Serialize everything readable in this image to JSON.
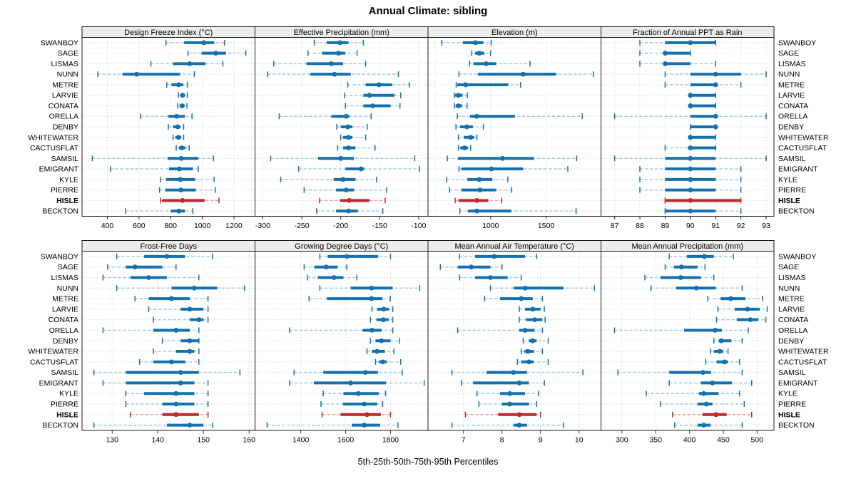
{
  "title": "Annual Climate: sibling",
  "footer": "5th-25th-50th-75th-95th Percentiles",
  "percentile_labels": [
    "5th",
    "25th",
    "50th",
    "75th",
    "95th"
  ],
  "stations": [
    "SWANBOY",
    "SAGE",
    "LISMAS",
    "NUNN",
    "METRE",
    "LARVIE",
    "CONATA",
    "ORELLA",
    "DENBY",
    "WHITEWATER",
    "CACTUSFLAT",
    "SAMSIL",
    "EMIGRANT",
    "KYLE",
    "PIERRE",
    "HISLE",
    "BECKTON"
  ],
  "highlighted_station": "HISLE",
  "colors": {
    "series": "#1471af",
    "series_light": "#a3c7e3",
    "highlight": "#c0282e",
    "highlight_light": "#e2a0a0",
    "strip_bg": "#ececec",
    "grid": "#c9c9c9",
    "border": "#1a1a1a"
  },
  "chart_data": {
    "type": "dotplot-percentiles",
    "grid_rows": 2,
    "grid_cols": 4,
    "panels": [
      {
        "title": "Design Freeze Index (°C)",
        "domain": [
          240,
          1333
        ],
        "ticks": [
          400,
          600,
          800,
          1000,
          1200
        ],
        "gridlines": [
          400,
          600,
          800,
          1000,
          1200
        ],
        "values": [
          [
            770,
            885,
            1010,
            1075,
            1140
          ],
          [
            910,
            995,
            1085,
            1150,
            1275
          ],
          [
            675,
            815,
            920,
            1020,
            1130
          ],
          [
            340,
            495,
            585,
            860,
            950
          ],
          [
            775,
            805,
            850,
            880,
            905
          ],
          [
            850,
            862,
            875,
            890,
            905
          ],
          [
            845,
            858,
            872,
            888,
            903
          ],
          [
            610,
            785,
            838,
            890,
            935
          ],
          [
            785,
            815,
            845,
            862,
            882
          ],
          [
            815,
            830,
            850,
            867,
            882
          ],
          [
            835,
            852,
            871,
            894,
            917
          ],
          [
            305,
            780,
            867,
            975,
            1070
          ],
          [
            420,
            790,
            855,
            940,
            975
          ],
          [
            735,
            771,
            861,
            954,
            1075
          ],
          [
            730,
            766,
            864,
            958,
            1082
          ],
          [
            736,
            745,
            875,
            1015,
            1105
          ],
          [
            515,
            800,
            852,
            890,
            940
          ]
        ]
      },
      {
        "title": "Effective Precipitation (mm)",
        "domain": [
          -310,
          -88
        ],
        "ticks": [
          -300,
          -250,
          -200,
          -150,
          -100
        ],
        "gridlines": [
          -300,
          -250,
          -200,
          -150,
          -100
        ],
        "values": [
          [
            -234,
            -218,
            -201,
            -190,
            -171
          ],
          [
            -242,
            -224,
            -203,
            -194,
            -179
          ],
          [
            -286,
            -244,
            -212,
            -197,
            -168
          ],
          [
            -294,
            -239,
            -208,
            -187,
            -126
          ],
          [
            -191,
            -168,
            -151,
            -134,
            -112
          ],
          [
            -195,
            -171,
            -163,
            -131,
            -123
          ],
          [
            -194,
            -171,
            -159,
            -136,
            -124
          ],
          [
            -279,
            -212,
            -193,
            -189,
            -161
          ],
          [
            -205,
            -200,
            -191,
            -185,
            -166
          ],
          [
            -200,
            -197,
            -190,
            -185,
            -168
          ],
          [
            -204,
            -197,
            -190,
            -181,
            -156
          ],
          [
            -290,
            -229,
            -200,
            -183,
            -105
          ],
          [
            -254,
            -194,
            -174,
            -170,
            -99
          ],
          [
            -277,
            -209,
            -197,
            -181,
            -154
          ],
          [
            -247,
            -206,
            -193,
            -183,
            -141
          ],
          [
            -227,
            -201,
            -189,
            -163,
            -143
          ],
          [
            -231,
            -206,
            -190,
            -178,
            -146
          ]
        ]
      },
      {
        "title": "Elevation (m)",
        "domain": [
          436,
          1994
        ],
        "ticks": [
          1000,
          1500
        ],
        "gridlines": [
          500,
          1000,
          1500
        ],
        "values": [
          [
            560,
            750,
            865,
            935,
            1005
          ],
          [
            830,
            860,
            898,
            944,
            1000
          ],
          [
            810,
            845,
            960,
            1050,
            1355
          ],
          [
            715,
            885,
            1293,
            1590,
            1925
          ],
          [
            690,
            700,
            775,
            1158,
            1270
          ],
          [
            673,
            680,
            710,
            748,
            790
          ],
          [
            673,
            685,
            710,
            745,
            788
          ],
          [
            700,
            815,
            875,
            1220,
            1825
          ],
          [
            688,
            723,
            786,
            840,
            935
          ],
          [
            710,
            758,
            820,
            852,
            876
          ],
          [
            710,
            726,
            765,
            797,
            820
          ],
          [
            610,
            705,
            1107,
            1390,
            1775
          ],
          [
            715,
            737,
            1008,
            1293,
            1695
          ],
          [
            603,
            790,
            897,
            1015,
            1155
          ],
          [
            630,
            737,
            904,
            1050,
            1190
          ],
          [
            680,
            710,
            876,
            980,
            1100
          ],
          [
            723,
            795,
            876,
            1186,
            1770
          ]
        ]
      },
      {
        "title": "Fraction of Annual PPT as Rain",
        "domain": [
          86.46,
          93.31
        ],
        "ticks": [
          87,
          88,
          89,
          90,
          91,
          92,
          93
        ],
        "gridlines": [
          87,
          88,
          89,
          90,
          91,
          92,
          93
        ],
        "values": [
          [
            88,
            89,
            90,
            91,
            91
          ],
          [
            88,
            89,
            89,
            90,
            90
          ],
          [
            88,
            89,
            89,
            90,
            91
          ],
          [
            89,
            90,
            91,
            92,
            93
          ],
          [
            89,
            90,
            91,
            91,
            92
          ],
          [
            90,
            90,
            90,
            91,
            91
          ],
          [
            90,
            90,
            90,
            91,
            91
          ],
          [
            87,
            90,
            91,
            91,
            93
          ],
          [
            90,
            90,
            91,
            91,
            91
          ],
          [
            90,
            90,
            90,
            91,
            91
          ],
          [
            89,
            90,
            90,
            91,
            91
          ],
          [
            87,
            89,
            90,
            91,
            93
          ],
          [
            88,
            89,
            90,
            91,
            92
          ],
          [
            88,
            89,
            90,
            91,
            92
          ],
          [
            88,
            89,
            90,
            91,
            92
          ],
          [
            89,
            89,
            90,
            92,
            92
          ],
          [
            89,
            89,
            90,
            91,
            92
          ]
        ]
      },
      {
        "title": "Frost-Free Days",
        "domain": [
          123.4,
          161.3
        ],
        "ticks": [
          130,
          140,
          150,
          160
        ],
        "gridlines": [
          130,
          140,
          150,
          160
        ],
        "values": [
          [
            131,
            137,
            142,
            146,
            152
          ],
          [
            129,
            133,
            135,
            141,
            144
          ],
          [
            128,
            134,
            138,
            142,
            149
          ],
          [
            131,
            143,
            148,
            153,
            159
          ],
          [
            135,
            138,
            143,
            147,
            151
          ],
          [
            138,
            145,
            147,
            150,
            151
          ],
          [
            139,
            147,
            149,
            150,
            151
          ],
          [
            128,
            139,
            144,
            147,
            149
          ],
          [
            141,
            145,
            147,
            149,
            149
          ],
          [
            139,
            144,
            147,
            148,
            149
          ],
          [
            136,
            139,
            143,
            146,
            149
          ],
          [
            126,
            133,
            145,
            149,
            158
          ],
          [
            128,
            133,
            145,
            148,
            151
          ],
          [
            133,
            137,
            144,
            148,
            151
          ],
          [
            133,
            141,
            144,
            148,
            151
          ],
          [
            134,
            141,
            144,
            149,
            151
          ],
          [
            126,
            142,
            147,
            150,
            152
          ]
        ]
      },
      {
        "title": "Growing Degree Days (°C)",
        "domain": [
          1196,
          1967
        ],
        "ticks": [
          1400,
          1600,
          1800
        ],
        "gridlines": [
          1200,
          1400,
          1600,
          1800
        ],
        "values": [
          [
            1485,
            1520,
            1605,
            1745,
            1800
          ],
          [
            1415,
            1460,
            1513,
            1565,
            1605
          ],
          [
            1430,
            1476,
            1548,
            1590,
            1650
          ],
          [
            1485,
            1622,
            1715,
            1810,
            1930
          ],
          [
            1437,
            1516,
            1715,
            1764,
            1799
          ],
          [
            1717,
            1740,
            1770,
            1793,
            1810
          ],
          [
            1710,
            1737,
            1768,
            1792,
            1810
          ],
          [
            1350,
            1675,
            1717,
            1760,
            1810
          ],
          [
            1710,
            1733,
            1760,
            1800,
            1840
          ],
          [
            1695,
            1717,
            1740,
            1775,
            1815
          ],
          [
            1733,
            1748,
            1766,
            1783,
            1845
          ],
          [
            1370,
            1500,
            1688,
            1744,
            1852
          ],
          [
            1350,
            1458,
            1622,
            1780,
            1950
          ],
          [
            1500,
            1590,
            1657,
            1747,
            1778
          ],
          [
            1490,
            1588,
            1683,
            1740,
            1765
          ],
          [
            1495,
            1577,
            1695,
            1757,
            1800
          ],
          [
            1250,
            1627,
            1683,
            1754,
            1833
          ]
        ]
      },
      {
        "title": "Mean Annual Air Temperature (°C)",
        "domain": [
          6.08,
          10.57
        ],
        "ticks": [
          7,
          8,
          9,
          10
        ],
        "gridlines": [
          7,
          8,
          9,
          10
        ],
        "values": [
          [
            6.9,
            7.3,
            7.8,
            8.6,
            8.9
          ],
          [
            6.4,
            6.85,
            7.2,
            7.7,
            8.0
          ],
          [
            6.9,
            7.3,
            7.7,
            8.15,
            8.5
          ],
          [
            7.7,
            8.3,
            8.6,
            9.6,
            10.4
          ],
          [
            7.55,
            7.95,
            8.5,
            8.8,
            9.05
          ],
          [
            8.45,
            8.6,
            8.8,
            9.0,
            9.1
          ],
          [
            8.45,
            8.62,
            8.85,
            9.05,
            9.12
          ],
          [
            6.85,
            8.45,
            8.6,
            8.85,
            9.05
          ],
          [
            8.55,
            8.7,
            8.8,
            8.9,
            9.2
          ],
          [
            8.5,
            8.58,
            8.67,
            8.83,
            9.05
          ],
          [
            8.4,
            8.5,
            8.7,
            8.82,
            9.2
          ],
          [
            6.7,
            7.6,
            8.3,
            8.65,
            10.1
          ],
          [
            6.95,
            7.25,
            8.45,
            8.7,
            9.1
          ],
          [
            7.35,
            7.95,
            8.2,
            8.6,
            8.95
          ],
          [
            7.4,
            8.0,
            8.2,
            8.7,
            8.9
          ],
          [
            7.05,
            7.9,
            8.45,
            8.9,
            9.0
          ],
          [
            6.7,
            8.3,
            8.45,
            8.65,
            9.6
          ]
        ]
      },
      {
        "title": "Mean Annual Precipitation (mm)",
        "domain": [
          269,
          525
        ],
        "ticks": [
          300,
          350,
          400,
          450,
          500
        ],
        "gridlines": [
          300,
          350,
          400,
          450,
          500
        ],
        "values": [
          [
            370,
            396,
            422,
            436,
            465
          ],
          [
            364,
            377,
            388,
            412,
            423
          ],
          [
            334,
            357,
            387,
            417,
            436
          ],
          [
            343,
            380,
            410,
            439,
            478
          ],
          [
            427,
            446,
            461,
            483,
            508
          ],
          [
            442,
            467,
            486,
            504,
            515
          ],
          [
            440,
            470,
            490,
            502,
            513
          ],
          [
            289,
            392,
            438,
            448,
            487
          ],
          [
            436,
            443,
            447,
            462,
            478
          ],
          [
            431,
            436,
            445,
            450,
            457
          ],
          [
            424,
            440,
            452,
            457,
            474
          ],
          [
            294,
            370,
            420,
            432,
            478
          ],
          [
            370,
            417,
            434,
            463,
            492
          ],
          [
            336,
            414,
            421,
            443,
            474
          ],
          [
            357,
            412,
            425,
            434,
            481
          ],
          [
            375,
            419,
            439,
            455,
            492
          ],
          [
            378,
            412,
            421,
            431,
            478
          ]
        ]
      }
    ]
  }
}
